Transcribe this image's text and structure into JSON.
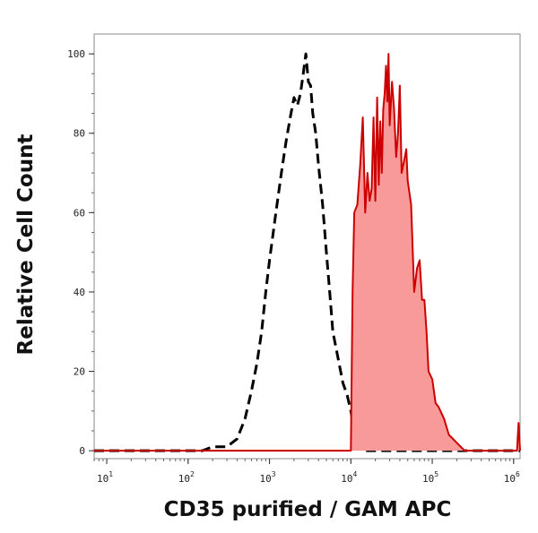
{
  "chart_data": {
    "type": "area",
    "title": "",
    "xlabel": "CD35 purified / GAM APC",
    "ylabel": "Relative Cell Count",
    "x_scale": "log",
    "xlim": [
      7,
      1200000
    ],
    "ylim": [
      -2,
      105
    ],
    "x_ticks": [
      {
        "value": 10,
        "base": "10",
        "exp": "1"
      },
      {
        "value": 100,
        "base": "10",
        "exp": "2"
      },
      {
        "value": 1000,
        "base": "10",
        "exp": "3"
      },
      {
        "value": 10000,
        "base": "10",
        "exp": "4"
      },
      {
        "value": 100000,
        "base": "10",
        "exp": "5"
      },
      {
        "value": 1000000,
        "base": "10",
        "exp": "6"
      }
    ],
    "y_ticks": [
      {
        "value": 0,
        "label": "0"
      },
      {
        "value": 20,
        "label": "20"
      },
      {
        "value": 40,
        "label": "40"
      },
      {
        "value": 60,
        "label": "60"
      },
      {
        "value": 80,
        "label": "80"
      },
      {
        "value": 100,
        "label": "100"
      }
    ],
    "grid": false,
    "legend": "none",
    "series": [
      {
        "style": "dashed",
        "color": "#000000",
        "fill": "none",
        "x": [
          7,
          150,
          200,
          300,
          400,
          500,
          600,
          700,
          800,
          900,
          1000,
          1200,
          1400,
          1600,
          1800,
          2000,
          2200,
          2400,
          2600,
          2800,
          3000,
          3200,
          3400,
          3700,
          4000,
          4500,
          5000,
          5500,
          6000,
          7000,
          8000,
          9000,
          10000,
          11000,
          12000,
          15000,
          1200000
        ],
        "y": [
          0,
          0,
          1,
          1,
          3,
          8,
          15,
          22,
          30,
          40,
          48,
          60,
          70,
          78,
          84,
          89,
          87,
          90,
          95,
          100,
          93,
          92,
          85,
          80,
          72,
          62,
          50,
          40,
          30,
          23,
          17,
          14,
          10,
          5,
          2,
          0,
          0
        ]
      },
      {
        "style": "solid",
        "color": "#cc0000",
        "fill": "#f99a9a",
        "x": [
          7,
          10000,
          10500,
          11000,
          12000,
          13000,
          14000,
          15000,
          16000,
          17000,
          18000,
          19000,
          20000,
          21000,
          22000,
          23000,
          24000,
          25000,
          26000,
          27000,
          28000,
          29000,
          30000,
          32000,
          34000,
          36000,
          38000,
          40000,
          42000,
          45000,
          48000,
          50000,
          55000,
          60000,
          65000,
          70000,
          75000,
          80000,
          85000,
          90000,
          100000,
          110000,
          120000,
          140000,
          160000,
          180000,
          200000,
          250000,
          1100000,
          1150000,
          1200000
        ],
        "y": [
          0,
          0,
          40,
          60,
          62,
          72,
          84,
          60,
          70,
          63,
          66,
          84,
          63,
          89,
          67,
          83,
          70,
          86,
          90,
          97,
          88,
          100,
          82,
          93,
          86,
          74,
          80,
          92,
          70,
          73,
          76,
          68,
          62,
          40,
          46,
          48,
          38,
          38,
          30,
          20,
          18,
          12,
          11,
          8,
          4,
          3,
          2,
          0,
          0,
          7,
          0
        ]
      }
    ]
  }
}
